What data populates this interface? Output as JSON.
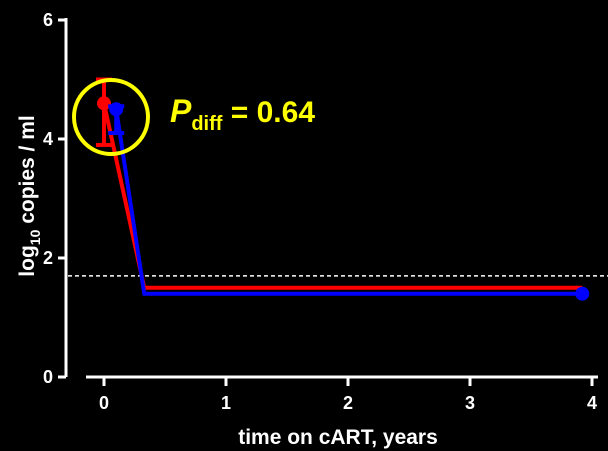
{
  "chart_data": {
    "type": "line",
    "xlabel": "time on cART, years",
    "ylabel_main": "log",
    "ylabel_sub": "10",
    "ylabel_rest": " copies / ml",
    "xlim": [
      -0.3,
      4.1
    ],
    "ylim": [
      0,
      6
    ],
    "xticks": [
      "0",
      "1",
      "2",
      "3",
      "4"
    ],
    "yticks": [
      "0",
      "2",
      "4",
      "6"
    ],
    "threshold_line": 1.7,
    "series": [
      {
        "color": "#ff0000",
        "points": [
          {
            "x": 0,
            "y": 4.6
          },
          {
            "x": 0.33,
            "y": 1.5
          },
          {
            "x": 3.92,
            "y": 1.5
          }
        ],
        "error_bar": {
          "x": 0,
          "low": 3.9,
          "high": 5.0
        }
      },
      {
        "color": "#0000ff",
        "points": [
          {
            "x": 0.1,
            "y": 4.5
          },
          {
            "x": 0.33,
            "y": 1.4
          },
          {
            "x": 3.92,
            "y": 1.4
          }
        ],
        "error_bar": {
          "x": 0.1,
          "low": 4.1,
          "high": 4.55
        }
      }
    ],
    "annotation": {
      "p": "P",
      "sub": "diff",
      "rest": " = 0.64",
      "color": "#ffff00"
    },
    "highlight_circle_color": "#ffff00"
  }
}
